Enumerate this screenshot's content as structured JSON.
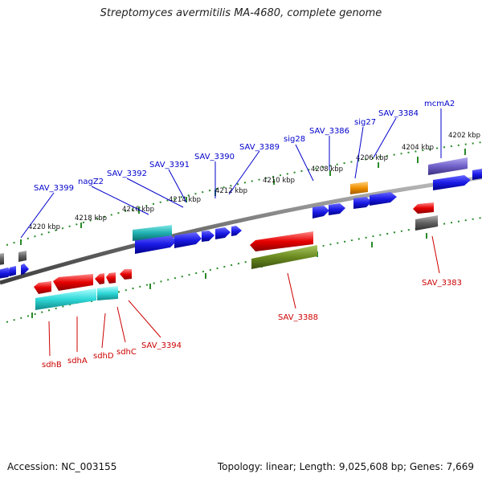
{
  "title": "Streptomyces avermitilis MA-4680, complete genome",
  "footer": {
    "accession": "Accession: NC_003155",
    "topology": "Topology: linear; Length: 9,025,608 bp; Genes: 7,669"
  },
  "scale": {
    "kbp_labels": [
      "4202 kbp",
      "4204 kbp",
      "4206 kbp",
      "4208 kbp",
      "4210 kbp",
      "4212 kbp",
      "4214 kbp",
      "4216 kbp",
      "4218 kbp",
      "4220 kbp"
    ]
  },
  "genes": {
    "top": [
      "mcmA2",
      "SAV_3384",
      "sig27",
      "SAV_3386",
      "sig28",
      "SAV_3389",
      "SAV_3390",
      "SAV_3391",
      "SAV_3392",
      "nagZ2",
      "SAV_3399"
    ],
    "bottom": [
      "SAV_3383",
      "SAV_3388",
      "SAV_3394",
      "sdhC",
      "sdhD",
      "sdhA",
      "sdhB"
    ]
  },
  "colors": {
    "cds": "#1a1ae6",
    "cds_reverse": "#e60000",
    "rna_top": "#20c0c0",
    "rna_bottom": "#30e0e0",
    "misc_green": "#6a8a20",
    "purple": "#7060c8",
    "orange": "#f09000",
    "grey": "#606060",
    "forward_label": "#0000cc",
    "reverse_label": "#cc0000"
  }
}
